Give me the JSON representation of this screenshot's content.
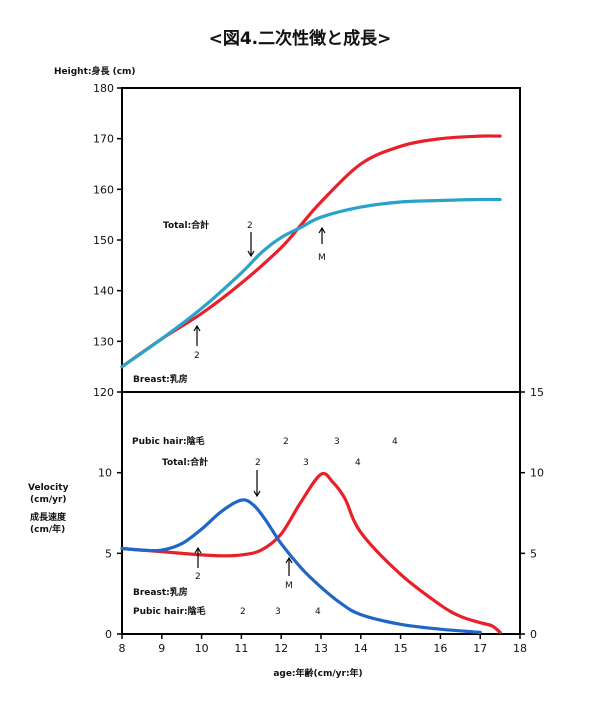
{
  "title": "<図4.二次性徴と成長>",
  "colors": {
    "boys": "#e8202a",
    "girls_top": "#2aa3c8",
    "girls_bottom": "#1f66c8",
    "axis": "#000000"
  },
  "chart_data": [
    {
      "type": "line",
      "panel": "top",
      "ylabel": "Height:身長 (cm)",
      "ylim": [
        120,
        180
      ],
      "yticks": [
        120,
        130,
        140,
        150,
        160,
        170,
        180
      ],
      "xlim": [
        8,
        18
      ],
      "series": [
        {
          "color": "#e8202a",
          "x": [
            8,
            9,
            10,
            11,
            12,
            12.5,
            13,
            14,
            15,
            16,
            17,
            17.5
          ],
          "y": [
            125,
            130.5,
            135.5,
            141.5,
            148.5,
            153,
            157.5,
            165,
            168.5,
            170,
            170.5,
            170.5
          ]
        },
        {
          "color": "#2aa3c8",
          "x": [
            8,
            9,
            10,
            11,
            11.5,
            12,
            12.5,
            13,
            14,
            15,
            16,
            17,
            17.5
          ],
          "y": [
            125,
            130.5,
            136.5,
            143.5,
            147.5,
            150.5,
            152.5,
            154.5,
            156.5,
            157.5,
            157.8,
            158,
            158
          ]
        }
      ],
      "annotations": {
        "total_label": "Total:合計",
        "total_stage": "2",
        "m_label": "M",
        "breast_stage": "2",
        "breast_label": "Breast:乳房"
      }
    },
    {
      "type": "line",
      "panel": "bottom",
      "ylabel_lines": [
        "Velocity",
        "(cm/yr)",
        "成長速度",
        "(cm/年)"
      ],
      "ylim": [
        0,
        15
      ],
      "yticks_left": [
        "0",
        "5",
        "10"
      ],
      "yticks_right": [
        "0",
        "5",
        "10",
        "15"
      ],
      "xlim": [
        8,
        18
      ],
      "xticks": [
        "8",
        "9",
        "10",
        "11",
        "12",
        "13",
        "14",
        "15",
        "16",
        "17",
        "18"
      ],
      "xlabel": "age:年齢(cm/yr:年)",
      "series": [
        {
          "color": "#e8202a",
          "x": [
            8,
            9,
            10,
            10.5,
            11,
            11.5,
            12,
            12.5,
            13,
            13.3,
            13.6,
            14,
            15,
            16,
            16.5,
            17,
            17.3,
            17.5
          ],
          "y": [
            5.3,
            5.1,
            4.9,
            4.85,
            4.9,
            5.2,
            6.2,
            8.2,
            9.9,
            9.4,
            8.4,
            6.3,
            3.7,
            1.8,
            1.1,
            0.7,
            0.5,
            0.1
          ]
        },
        {
          "color": "#1f66c8",
          "x": [
            8,
            8.5,
            9,
            9.5,
            10,
            10.5,
            11,
            11.3,
            11.6,
            12,
            12.5,
            13,
            13.5,
            14,
            15,
            16,
            17
          ],
          "y": [
            5.3,
            5.2,
            5.2,
            5.6,
            6.5,
            7.6,
            8.3,
            8.0,
            7.1,
            5.6,
            4.1,
            2.9,
            1.9,
            1.2,
            0.6,
            0.3,
            0.1
          ]
        }
      ],
      "annotations": {
        "pubic_hair_label": "Pubic hair:陰毛",
        "boys_pubic_stages": [
          "2",
          "3",
          "4"
        ],
        "total_label": "Total:合計",
        "boys_total_stages": [
          "2",
          "3",
          "4"
        ],
        "breast_stage": "2",
        "m_label": "M",
        "breast_label": "Breast:乳房",
        "girls_pubic_label": "Pubic hair:陰毛",
        "girls_pubic_stages": [
          "2",
          "3",
          "4"
        ]
      }
    }
  ]
}
